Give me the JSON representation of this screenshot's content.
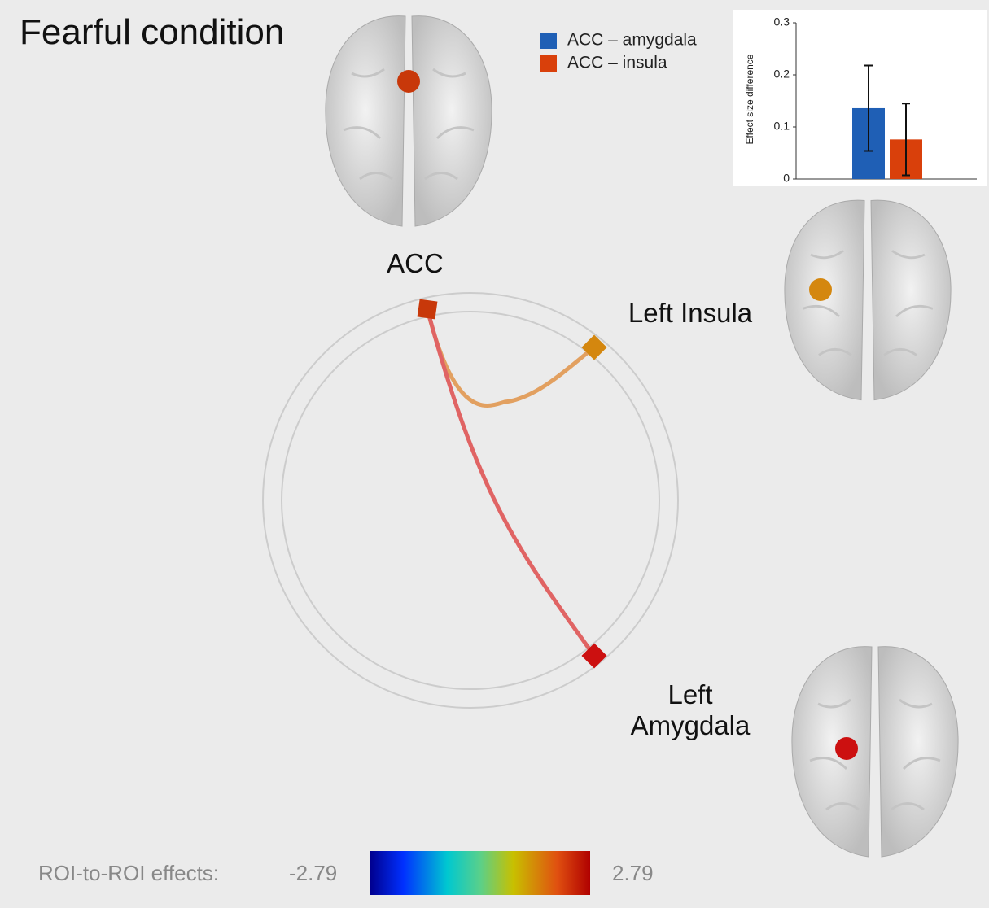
{
  "title": "Fearful condition",
  "regions": [
    {
      "label": "ACC",
      "color": "#c8380a"
    },
    {
      "label": "Left Insula",
      "color": "#d4870f"
    },
    {
      "label": "Left Amygdala",
      "color": "#cc1010"
    }
  ],
  "colorbar": {
    "label": "ROI-to-ROI effects:",
    "lim": [
      -2.79,
      2.79
    ]
  },
  "chart_data": {
    "type": "bar",
    "ylabel": "Effect size difference",
    "categories": [
      null
    ],
    "series": [
      {
        "name": "ACC – amygdala",
        "color": "#1f5fb5",
        "values": [
          0.136
        ],
        "errors": [
          0.082
        ]
      },
      {
        "name": "ACC – insula",
        "color": "#d9400b",
        "values": [
          0.076
        ],
        "errors": [
          0.069
        ]
      }
    ],
    "ylim": [
      0,
      0.3
    ],
    "yticks": [
      0,
      0.1,
      0.2,
      0.3
    ]
  }
}
